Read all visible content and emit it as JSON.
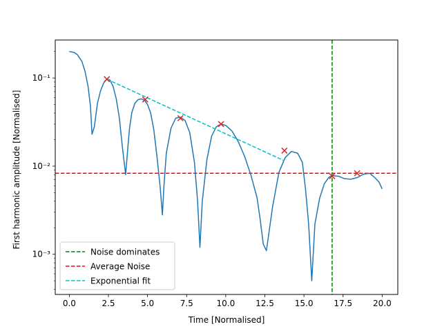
{
  "chart_data": {
    "type": "line",
    "xlabel": "Time [Normalised]",
    "ylabel": "First harmonic amplitude [Normalised]",
    "yscale": "log",
    "xlim": [
      -0.9,
      21.0
    ],
    "ylim": [
      0.00035,
      0.27
    ],
    "x_ticks": [
      0,
      2.5,
      5,
      7.5,
      10,
      12.5,
      15,
      17.5,
      20
    ],
    "x_tick_labels": [
      "0.0",
      "2.5",
      "5.0",
      "7.5",
      "10.0",
      "12.5",
      "15.0",
      "17.5",
      "20.0"
    ],
    "y_ticks": [
      0.001,
      0.01,
      0.1
    ],
    "y_tick_labels": [
      "10⁻³",
      "10⁻²",
      "10⁻¹"
    ],
    "grid": false,
    "legend_position": "lower-left",
    "series": {
      "signal": {
        "color": "#1f77b4",
        "x": [
          0,
          0.3,
          0.5,
          0.8,
          1.0,
          1.2,
          1.35,
          1.45,
          1.6,
          1.8,
          2.0,
          2.2,
          2.4,
          2.6,
          2.8,
          3.0,
          3.2,
          3.4,
          3.6,
          3.75,
          3.85,
          4.0,
          4.2,
          4.4,
          4.6,
          4.8,
          5.0,
          5.2,
          5.4,
          5.6,
          5.8,
          5.95,
          6.05,
          6.2,
          6.5,
          6.8,
          7.1,
          7.4,
          7.7,
          8.0,
          8.2,
          8.35,
          8.5,
          8.8,
          9.1,
          9.4,
          9.7,
          10.0,
          10.4,
          10.8,
          11.2,
          11.6,
          12.0,
          12.2,
          12.4,
          12.6,
          13.0,
          13.4,
          13.8,
          14.2,
          14.6,
          14.9,
          15.1,
          15.3,
          15.5,
          15.7,
          16.0,
          16.3,
          16.6,
          16.8,
          17.2,
          17.6,
          18.0,
          18.4,
          18.8,
          19.2,
          19.5,
          19.8,
          20.0
        ],
        "y": [
          0.2,
          0.195,
          0.185,
          0.155,
          0.12,
          0.08,
          0.048,
          0.023,
          0.028,
          0.052,
          0.072,
          0.088,
          0.097,
          0.095,
          0.08,
          0.058,
          0.035,
          0.016,
          0.008,
          0.017,
          0.027,
          0.041,
          0.052,
          0.057,
          0.058,
          0.056,
          0.05,
          0.04,
          0.026,
          0.013,
          0.006,
          0.0028,
          0.006,
          0.014,
          0.027,
          0.035,
          0.036,
          0.033,
          0.024,
          0.011,
          0.004,
          0.0012,
          0.004,
          0.012,
          0.022,
          0.028,
          0.03,
          0.029,
          0.025,
          0.019,
          0.013,
          0.008,
          0.0044,
          0.0025,
          0.0013,
          0.0011,
          0.0035,
          0.0085,
          0.0125,
          0.0147,
          0.014,
          0.011,
          0.0055,
          0.0022,
          0.0005,
          0.0022,
          0.0043,
          0.0063,
          0.0075,
          0.0078,
          0.0077,
          0.0072,
          0.0071,
          0.0074,
          0.0081,
          0.0083,
          0.0075,
          0.0066,
          0.0055
        ]
      },
      "peaks": {
        "color": "#d62728",
        "marker": "x",
        "x": [
          2.4,
          4.85,
          7.1,
          9.7,
          13.75,
          16.8,
          18.4
        ],
        "y": [
          0.097,
          0.057,
          0.035,
          0.03,
          0.015,
          0.0077,
          0.0083
        ]
      },
      "noise_dominates": {
        "name": "Noise dominates",
        "color": "#008000",
        "style": "dashed",
        "orientation": "vertical",
        "x": 16.8
      },
      "average_noise": {
        "name": "Average Noise",
        "color": "#ff0000",
        "style": "dashed",
        "orientation": "horizontal",
        "y": 0.0083
      },
      "exponential_fit": {
        "name": "Exponential fit",
        "color": "#00bfbf",
        "style": "dashed",
        "x": [
          2.4,
          13.75
        ],
        "y": [
          0.097,
          0.0115
        ]
      }
    }
  }
}
